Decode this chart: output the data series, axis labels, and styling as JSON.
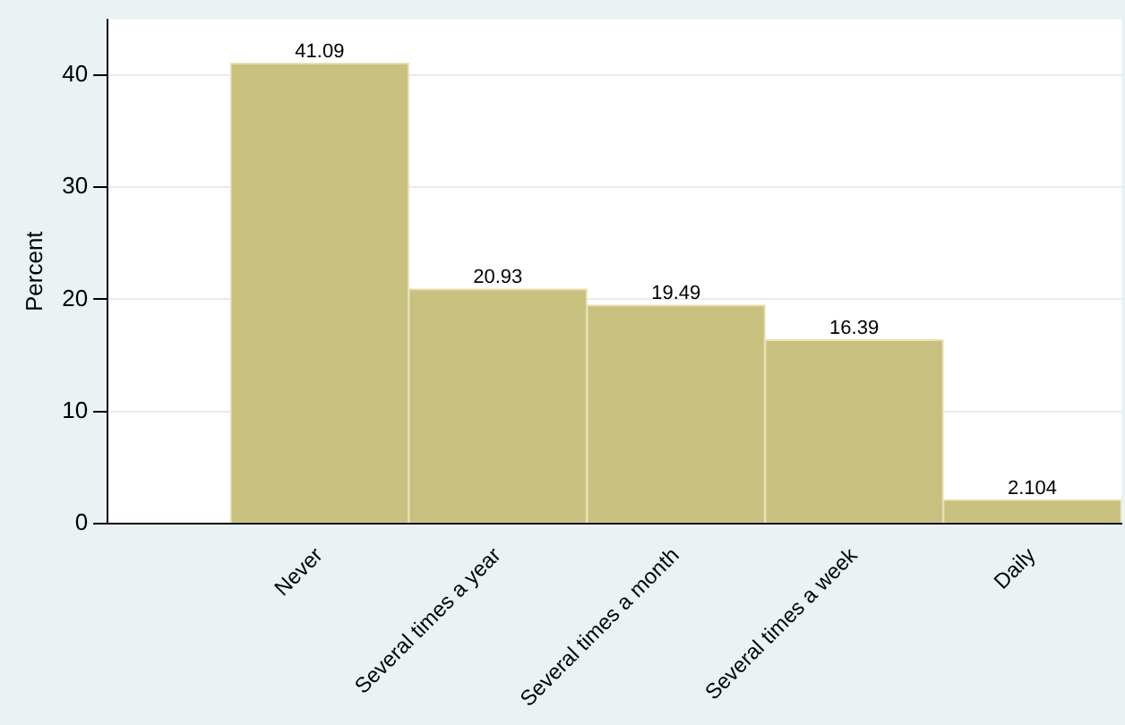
{
  "chart_data": {
    "type": "bar",
    "ylabel": "Percent",
    "categories": [
      "Never",
      "Several times a year",
      "Several times a month",
      "Several times a week",
      "Daily"
    ],
    "values": [
      41.09,
      20.93,
      19.49,
      16.39,
      2.104
    ],
    "color": "#c8c07e",
    "ylim": [
      0,
      45
    ],
    "yticks": [
      0,
      10,
      20,
      30,
      40
    ],
    "grid": "y",
    "data_labels": true,
    "legend": false
  }
}
